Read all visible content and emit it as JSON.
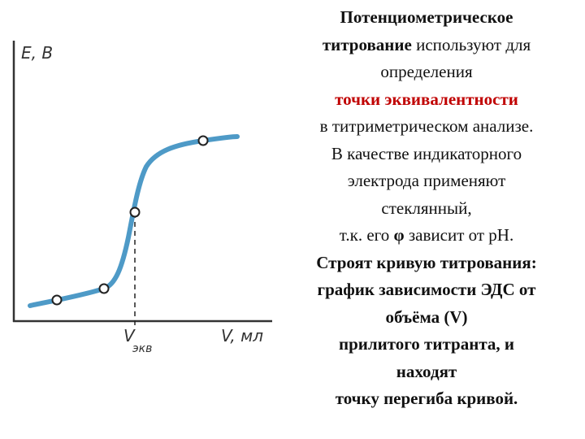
{
  "figure": {
    "y_label": "E, B",
    "x_label": "V, мл",
    "eq_label": "V",
    "eq_sub": "экв"
  },
  "text": {
    "lines": [
      [
        {
          "text": "Потенциометрическое",
          "style": "bold"
        }
      ],
      [
        {
          "text": "титрование",
          "style": "bold"
        },
        {
          "text": " используют для",
          "style": "normal"
        }
      ],
      [
        {
          "text": "определения",
          "style": "normal"
        }
      ],
      [
        {
          "text": "точки эквивалентности",
          "style": "bold-red"
        }
      ],
      [
        {
          "text": "в титриметрическом анализе.",
          "style": "normal"
        }
      ],
      [
        {
          "text": "В качестве индикаторного",
          "style": "normal"
        }
      ],
      [
        {
          "text": "электрода применяют",
          "style": "normal"
        }
      ],
      [
        {
          "text": "стеклянный,",
          "style": "normal"
        }
      ],
      [
        {
          "text": "т.к. его ",
          "style": "normal"
        },
        {
          "text": "φ",
          "style": "bold"
        },
        {
          "text": " зависит от pH.",
          "style": "normal"
        }
      ],
      [
        {
          "text": "Строят кривую титрования:",
          "style": "bold"
        }
      ],
      [
        {
          "text": "график зависимости ЭДС от",
          "style": "bold"
        }
      ],
      [
        {
          "text": "объёма (V)",
          "style": "bold"
        }
      ],
      [
        {
          "text": "прилитого титранта, и",
          "style": "bold"
        }
      ],
      [
        {
          "text": "находят",
          "style": "bold"
        }
      ],
      [
        {
          "text": "точку перегиба кривой.",
          "style": "bold"
        }
      ]
    ]
  }
}
